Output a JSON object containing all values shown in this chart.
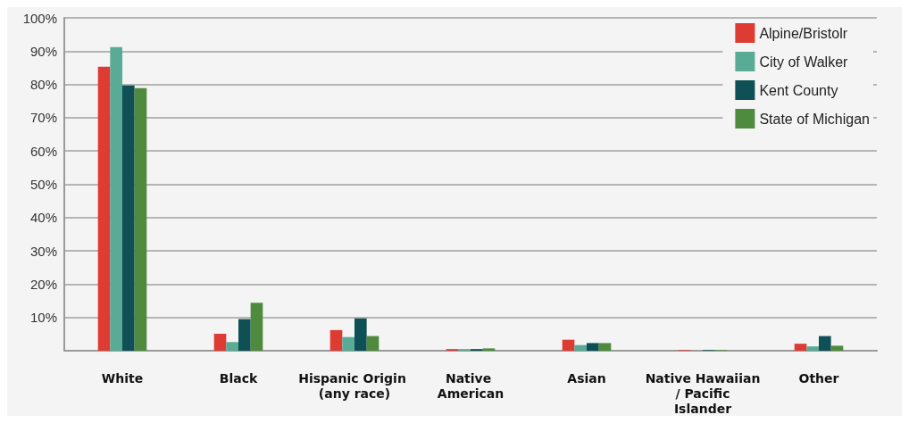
{
  "chart_data": {
    "type": "bar",
    "categories": [
      "White",
      "Black",
      "Hispanic Origin (any race)",
      "Native American",
      "Asian",
      "Native Hawaiian / Pacific Islander",
      "Other"
    ],
    "series": [
      {
        "name": "Alpine/Bristolr",
        "color": "#de3b33",
        "values": [
          85.3,
          5.1,
          6.2,
          0.5,
          3.3,
          0.2,
          2.1
        ]
      },
      {
        "name": "City of Walker",
        "color": "#5aab96",
        "values": [
          91.2,
          2.6,
          4.1,
          0.5,
          1.7,
          null,
          1.3
        ]
      },
      {
        "name": "Kent County",
        "color": "#0e5055",
        "values": [
          79.7,
          9.5,
          9.7,
          0.5,
          2.3,
          0.2,
          4.4
        ]
      },
      {
        "name": "State of Michigan",
        "color": "#4f8b3e",
        "values": [
          78.9,
          14.4,
          4.4,
          0.7,
          2.3,
          0.2,
          1.5
        ]
      }
    ],
    "ylim": [
      0,
      100
    ],
    "yticks": [
      {
        "value": 10,
        "label": "10%"
      },
      {
        "value": 20,
        "label": "20%"
      },
      {
        "value": 30,
        "label": "30%"
      },
      {
        "value": 40,
        "label": "40%"
      },
      {
        "value": 50,
        "label": "50%"
      },
      {
        "value": 60,
        "label": "60%"
      },
      {
        "value": 70,
        "label": "70%"
      },
      {
        "value": 80,
        "label": "80%"
      },
      {
        "value": 90,
        "label": "90%"
      },
      {
        "value": 100,
        "label": "100%"
      }
    ],
    "grid": "y",
    "legend": "top right"
  }
}
